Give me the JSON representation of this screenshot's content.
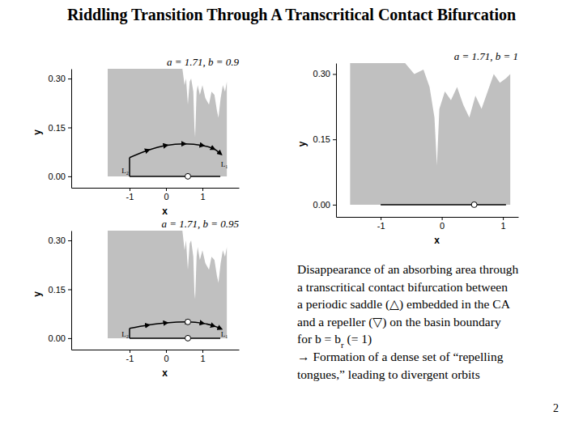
{
  "slide": {
    "title": "Riddling Transition Through A Transcritical Contact Bifurcation",
    "caption": [
      "Disappearance of an absorbing area through",
      "a transcritical contact bifurcation between",
      "a periodic saddle (△) embedded in the CA",
      "and a repeller (▽) on the basin boundary",
      {
        "text": "for b = b",
        "subscript": "r",
        "after": " (= 1)"
      },
      "→ Formation of a dense set of “repelling",
      "tongues,” leading to divergent orbits"
    ],
    "page": 2
  },
  "chart_data": [
    {
      "type": "line",
      "title": "a = 1.71, b = 0.9",
      "x_label": "x",
      "y_label": "y",
      "xlim": [
        -2.6,
        2.0
      ],
      "ylim": [
        -0.035,
        0.33
      ],
      "xticks": [
        -1,
        0,
        1
      ],
      "yticks": [
        {
          "value": 0,
          "label": "0.00"
        },
        {
          "value": 0.15,
          "label": "0.15"
        },
        {
          "value": 0.3,
          "label": "0.30"
        }
      ],
      "series": [
        {
          "type": "area",
          "color": "#c0c0c0",
          "x": [
            -1.6,
            0.45,
            0.51,
            0.55,
            0.6,
            0.65,
            0.69,
            0.75,
            0.78,
            0.8,
            0.84,
            0.87,
            0.93,
            1.0,
            1.08,
            1.18,
            1.25,
            1.33,
            1.4,
            1.44,
            1.5,
            1.56,
            1.62,
            1.67,
            1.67
          ],
          "values": [
            0.33,
            0.33,
            0.28,
            0.3,
            0.22,
            0.29,
            0.3,
            0.26,
            0.15,
            0.12,
            0.26,
            0.28,
            0.25,
            0.28,
            0.24,
            0.22,
            0.26,
            0.25,
            0.2,
            0.18,
            0.24,
            0.28,
            0.26,
            0.29,
            0
          ]
        },
        {
          "type": "line",
          "color": "#000000",
          "x": [
            -1,
            1.49
          ],
          "values": [
            0,
            0
          ]
        },
        {
          "type": "line",
          "color": "#000000",
          "x": [
            -1,
            -1
          ],
          "values": [
            0,
            0.0575
          ]
        },
        {
          "type": "line",
          "color": "#000000",
          "marker": "arrow",
          "x": [
            -1,
            -0.5,
            0,
            0.5,
            1,
            1.3,
            1.49
          ],
          "values": [
            0.0575,
            0.08,
            0.095,
            0.1,
            0.095,
            0.085,
            0.07
          ]
        },
        {
          "type": "scatter",
          "color": "#ffffff",
          "marker": "circle",
          "x": [
            0.6
          ],
          "values": [
            0
          ]
        }
      ],
      "annotations": [
        {
          "text": "L₂",
          "x": -1.12,
          "y": 0.01
        },
        {
          "text": "L₁",
          "x": 1.6,
          "y": 0.03
        }
      ]
    },
    {
      "type": "line",
      "title": "a = 1.71, b = 0.95",
      "x_label": "x",
      "y_label": "y",
      "xlim": [
        -2.6,
        2.0
      ],
      "ylim": [
        -0.035,
        0.33
      ],
      "xticks": [
        -1,
        0,
        1
      ],
      "yticks": [
        {
          "value": 0,
          "label": "0.00"
        },
        {
          "value": 0.15,
          "label": "0.15"
        },
        {
          "value": 0.3,
          "label": "0.30"
        }
      ],
      "series": [
        {
          "type": "area",
          "color": "#c0c0c0",
          "x": [
            -1.6,
            0.45,
            0.51,
            0.55,
            0.6,
            0.65,
            0.69,
            0.75,
            0.78,
            0.8,
            0.84,
            0.87,
            0.93,
            1.0,
            1.08,
            1.18,
            1.25,
            1.33,
            1.4,
            1.44,
            1.5,
            1.56,
            1.62,
            1.67,
            1.67
          ],
          "values": [
            0.33,
            0.33,
            0.27,
            0.3,
            0.21,
            0.29,
            0.3,
            0.25,
            0.14,
            0.12,
            0.25,
            0.28,
            0.24,
            0.27,
            0.23,
            0.21,
            0.25,
            0.24,
            0.19,
            0.17,
            0.23,
            0.27,
            0.25,
            0.28,
            0
          ]
        },
        {
          "type": "line",
          "color": "#000000",
          "x": [
            -1,
            1.49
          ],
          "values": [
            0,
            0
          ]
        },
        {
          "type": "line",
          "color": "#000000",
          "x": [
            -1,
            -1
          ],
          "values": [
            0,
            0.03
          ]
        },
        {
          "type": "line",
          "color": "#000000",
          "marker": "arrow",
          "x": [
            -1,
            -0.5,
            0,
            0.6,
            1,
            1.3,
            1.49
          ],
          "values": [
            0.03,
            0.04,
            0.047,
            0.05,
            0.046,
            0.038,
            0.03
          ]
        },
        {
          "type": "scatter",
          "color": "#ffffff",
          "marker": "circle",
          "x": [
            0.6,
            0.6
          ],
          "values": [
            0,
            0.05
          ]
        }
      ],
      "annotations": [
        {
          "text": "L₂",
          "x": -1.12,
          "y": 0.005
        },
        {
          "text": "L₁",
          "x": 1.6,
          "y": 0.005
        }
      ]
    },
    {
      "type": "line",
      "title": "a = 1.71, b = 1",
      "x_label": "x",
      "y_label": "y",
      "xlim": [
        -1.73,
        1.25
      ],
      "ylim": [
        -0.028,
        0.325
      ],
      "xticks": [
        -1,
        0,
        1
      ],
      "yticks": [
        {
          "value": 0,
          "label": "0.00"
        },
        {
          "value": 0.15,
          "label": "0.15"
        },
        {
          "value": 0.3,
          "label": "0.30"
        }
      ],
      "series": [
        {
          "type": "area",
          "color": "#c0c0c0",
          "x": [
            -1.5,
            -0.6,
            -0.45,
            -0.3,
            -0.2,
            -0.12,
            -0.08,
            -0.04,
            0.05,
            0.15,
            0.25,
            0.35,
            0.45,
            0.55,
            0.65,
            0.75,
            0.85,
            0.95,
            1.05,
            1.12,
            1.12
          ],
          "values": [
            0.325,
            0.325,
            0.3,
            0.31,
            0.27,
            0.2,
            0.09,
            0.22,
            0.26,
            0.24,
            0.27,
            0.23,
            0.2,
            0.25,
            0.22,
            0.26,
            0.3,
            0.28,
            0.29,
            0.3,
            0
          ]
        },
        {
          "type": "line",
          "color": "#000000",
          "x": [
            -1,
            1.05
          ],
          "values": [
            0,
            0
          ]
        },
        {
          "type": "scatter",
          "color": "#ffffff",
          "marker": "circle",
          "x": [
            0.53
          ],
          "values": [
            0
          ]
        }
      ],
      "annotations": []
    }
  ]
}
